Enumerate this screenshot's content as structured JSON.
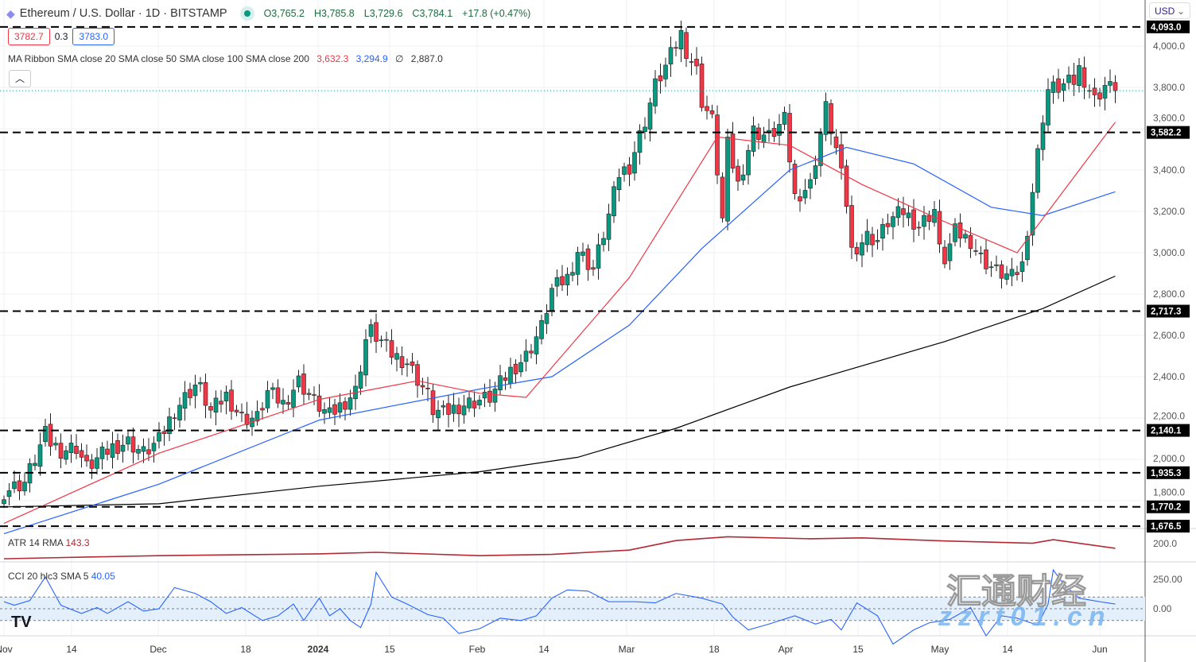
{
  "header": {
    "symbol": "Ethereum / U.S. Dollar · 1D · BITSTAMP",
    "open": "O3,765.2",
    "high": "H3,785.8",
    "low": "L3,729.6",
    "close": "C3,784.1",
    "change": "+17.8 (+0.47%)",
    "market_status": "open",
    "icon": "ethereum-icon"
  },
  "quote": {
    "bid": "3782.7",
    "spread": "0.3",
    "ask": "3783.0"
  },
  "ma_legend": {
    "label": "MA Ribbon SMA close 20 SMA close 50 SMA close 100 SMA close 200",
    "v20": "3,632.3",
    "v50": "3,294.9",
    "v100": "∅",
    "v200": "2,887.0"
  },
  "currency": "USD",
  "colors": {
    "up": "#089981",
    "down": "#f23645",
    "sma20": "#f23645",
    "sma50": "#2962ff",
    "sma200": "#000000",
    "atr": "#b22833",
    "cci": "#2962ff"
  },
  "price_axis": {
    "ticks": [
      "4,000.0",
      "3,800.0",
      "3,600.0",
      "3,400.0",
      "3,200.0",
      "3,000.0",
      "2,800.0",
      "2,600.0",
      "2,400.0",
      "2,200.0",
      "2,000.0",
      "1,800.0"
    ]
  },
  "levels": [
    "4,093.0",
    "3,582.2",
    "2,717.3",
    "2,140.1",
    "1,935.3",
    "1,770.2",
    "1,676.5"
  ],
  "time_axis": [
    "Nov",
    "14",
    "Dec",
    "18",
    "2024",
    "15",
    "Feb",
    "14",
    "Mar",
    "18",
    "Apr",
    "15",
    "May",
    "14",
    "Jun"
  ],
  "atr": {
    "label": "ATR 14 RMA",
    "value": "143.3",
    "tick": "200.0"
  },
  "cci": {
    "label": "CCI 20 hlc3 SMA 5",
    "value": "40.05",
    "ticks": [
      "250.00",
      "0.00"
    ]
  },
  "watermark": {
    "text": "zzrt01.cn",
    "cn": "汇通财经"
  },
  "chart_data": {
    "type": "candlestick",
    "ylim": [
      1650,
      4120
    ],
    "closes": [
      [
        "2023-11-01",
        1845
      ],
      [
        "2023-11-05",
        1890
      ],
      [
        "2023-11-09",
        2120
      ],
      [
        "2023-11-10",
        2080
      ],
      [
        "2023-11-12",
        2045
      ],
      [
        "2023-11-15",
        2060
      ],
      [
        "2023-11-17",
        1960
      ],
      [
        "2023-11-20",
        2020
      ],
      [
        "2023-11-22",
        2060
      ],
      [
        "2023-11-25",
        2085
      ],
      [
        "2023-11-28",
        2030
      ],
      [
        "2023-12-01",
        2090
      ],
      [
        "2023-12-04",
        2240
      ],
      [
        "2023-12-08",
        2360
      ],
      [
        "2023-12-09",
        2340
      ],
      [
        "2023-12-11",
        2230
      ],
      [
        "2023-12-14",
        2310
      ],
      [
        "2023-12-17",
        2200
      ],
      [
        "2023-12-20",
        2200
      ],
      [
        "2023-12-22",
        2325
      ],
      [
        "2023-12-25",
        2270
      ],
      [
        "2023-12-28",
        2380
      ],
      [
        "2023-12-31",
        2280
      ],
      [
        "2024-01-03",
        2210
      ],
      [
        "2024-01-08",
        2330
      ],
      [
        "2024-01-10",
        2580
      ],
      [
        "2024-01-11",
        2620
      ],
      [
        "2024-01-13",
        2570
      ],
      [
        "2024-01-15",
        2510
      ],
      [
        "2024-01-18",
        2470
      ],
      [
        "2024-01-22",
        2310
      ],
      [
        "2024-01-23",
        2240
      ],
      [
        "2024-01-25",
        2220
      ],
      [
        "2024-01-28",
        2260
      ],
      [
        "2024-01-31",
        2280
      ],
      [
        "2024-02-03",
        2300
      ],
      [
        "2024-02-07",
        2430
      ],
      [
        "2024-02-10",
        2500
      ],
      [
        "2024-02-13",
        2640
      ],
      [
        "2024-02-15",
        2820
      ],
      [
        "2024-02-18",
        2880
      ],
      [
        "2024-02-20",
        3010
      ],
      [
        "2024-02-23",
        2920
      ],
      [
        "2024-02-26",
        3180
      ],
      [
        "2024-02-28",
        3380
      ],
      [
        "2024-03-01",
        3420
      ],
      [
        "2024-03-04",
        3640
      ],
      [
        "2024-03-06",
        3810
      ],
      [
        "2024-03-08",
        3900
      ],
      [
        "2024-03-11",
        4060
      ],
      [
        "2024-03-12",
        3980
      ],
      [
        "2024-03-14",
        3880
      ],
      [
        "2024-03-15",
        3735
      ],
      [
        "2024-03-17",
        3640
      ],
      [
        "2024-03-19",
        3160
      ],
      [
        "2024-03-20",
        3520
      ],
      [
        "2024-03-22",
        3330
      ],
      [
        "2024-03-25",
        3590
      ],
      [
        "2024-03-28",
        3560
      ],
      [
        "2024-03-31",
        3640
      ],
      [
        "2024-04-02",
        3270
      ],
      [
        "2024-04-05",
        3330
      ],
      [
        "2024-04-08",
        3700
      ],
      [
        "2024-04-10",
        3500
      ],
      [
        "2024-04-12",
        3240
      ],
      [
        "2024-04-13",
        3010
      ],
      [
        "2024-04-16",
        3080
      ],
      [
        "2024-04-18",
        3060
      ],
      [
        "2024-04-20",
        3150
      ],
      [
        "2024-04-23",
        3200
      ],
      [
        "2024-04-26",
        3130
      ],
      [
        "2024-04-29",
        3210
      ],
      [
        "2024-04-30",
        3010
      ],
      [
        "2024-05-01",
        2970
      ],
      [
        "2024-05-03",
        3100
      ],
      [
        "2024-05-06",
        3060
      ],
      [
        "2024-05-08",
        2975
      ],
      [
        "2024-05-11",
        2910
      ],
      [
        "2024-05-14",
        2880
      ],
      [
        "2024-05-16",
        2940
      ],
      [
        "2024-05-20",
        3660
      ],
      [
        "2024-05-21",
        3790
      ],
      [
        "2024-05-23",
        3800
      ],
      [
        "2024-05-26",
        3830
      ],
      [
        "2024-05-27",
        3890
      ],
      [
        "2024-05-30",
        3740
      ],
      [
        "2024-06-01",
        3810
      ],
      [
        "2024-06-03",
        3784
      ]
    ],
    "sma20": [
      [
        "2023-11-01",
        1690
      ],
      [
        "2023-12-01",
        2030
      ],
      [
        "2024-01-01",
        2290
      ],
      [
        "2024-01-20",
        2380
      ],
      [
        "2024-02-01",
        2320
      ],
      [
        "2024-02-10",
        2300
      ],
      [
        "2024-03-01",
        2880
      ],
      [
        "2024-03-18",
        3560
      ],
      [
        "2024-04-01",
        3520
      ],
      [
        "2024-04-15",
        3330
      ],
      [
        "2024-05-01",
        3150
      ],
      [
        "2024-05-15",
        3000
      ],
      [
        "2024-06-03",
        3632
      ]
    ],
    "sma50": [
      [
        "2023-11-01",
        1640
      ],
      [
        "2023-12-01",
        1880
      ],
      [
        "2024-01-01",
        2190
      ],
      [
        "2024-02-01",
        2340
      ],
      [
        "2024-02-15",
        2400
      ],
      [
        "2024-03-01",
        2650
      ],
      [
        "2024-03-15",
        3020
      ],
      [
        "2024-04-01",
        3400
      ],
      [
        "2024-04-12",
        3510
      ],
      [
        "2024-04-25",
        3430
      ],
      [
        "2024-05-10",
        3220
      ],
      [
        "2024-05-20",
        3180
      ],
      [
        "2024-06-03",
        3295
      ]
    ],
    "sma200": [
      [
        "2023-11-01",
        1770
      ],
      [
        "2023-12-01",
        1785
      ],
      [
        "2024-01-01",
        1870
      ],
      [
        "2024-02-01",
        1940
      ],
      [
        "2024-02-20",
        2010
      ],
      [
        "2024-03-10",
        2150
      ],
      [
        "2024-04-01",
        2350
      ],
      [
        "2024-05-01",
        2570
      ],
      [
        "2024-05-20",
        2730
      ],
      [
        "2024-06-03",
        2887
      ]
    ],
    "atr": [
      [
        "2023-11-01",
        96
      ],
      [
        "2023-11-09",
        100
      ],
      [
        "2023-12-01",
        110
      ],
      [
        "2024-01-01",
        118
      ],
      [
        "2024-01-12",
        125
      ],
      [
        "2024-02-01",
        110
      ],
      [
        "2024-02-15",
        116
      ],
      [
        "2024-03-01",
        135
      ],
      [
        "2024-03-10",
        178
      ],
      [
        "2024-03-20",
        195
      ],
      [
        "2024-04-05",
        186
      ],
      [
        "2024-04-15",
        190
      ],
      [
        "2024-05-01",
        176
      ],
      [
        "2024-05-18",
        166
      ],
      [
        "2024-05-22",
        182
      ],
      [
        "2024-06-03",
        143
      ]
    ],
    "cci": [
      [
        "2023-11-01",
        60
      ],
      [
        "2023-11-03",
        30
      ],
      [
        "2023-11-06",
        70
      ],
      [
        "2023-11-09",
        270
      ],
      [
        "2023-11-12",
        30
      ],
      [
        "2023-11-16",
        -40
      ],
      [
        "2023-11-19",
        10
      ],
      [
        "2023-11-21",
        -40
      ],
      [
        "2023-11-25",
        60
      ],
      [
        "2023-11-28",
        -20
      ],
      [
        "2023-12-01",
        0
      ],
      [
        "2023-12-04",
        180
      ],
      [
        "2023-12-08",
        130
      ],
      [
        "2023-12-11",
        60
      ],
      [
        "2023-12-14",
        -40
      ],
      [
        "2023-12-17",
        10
      ],
      [
        "2023-12-21",
        -100
      ],
      [
        "2023-12-24",
        -60
      ],
      [
        "2023-12-27",
        40
      ],
      [
        "2023-12-29",
        -100
      ],
      [
        "2024-01-01",
        90
      ],
      [
        "2024-01-03",
        -60
      ],
      [
        "2024-01-05",
        0
      ],
      [
        "2024-01-07",
        -100
      ],
      [
        "2024-01-09",
        -160
      ],
      [
        "2024-01-11",
        40
      ],
      [
        "2024-01-12",
        310
      ],
      [
        "2024-01-15",
        100
      ],
      [
        "2024-01-18",
        40
      ],
      [
        "2024-01-22",
        -50
      ],
      [
        "2024-01-25",
        -80
      ],
      [
        "2024-01-28",
        -210
      ],
      [
        "2024-02-01",
        -170
      ],
      [
        "2024-02-05",
        -80
      ],
      [
        "2024-02-09",
        -100
      ],
      [
        "2024-02-12",
        -60
      ],
      [
        "2024-02-15",
        90
      ],
      [
        "2024-02-18",
        160
      ],
      [
        "2024-02-22",
        150
      ],
      [
        "2024-02-26",
        60
      ],
      [
        "2024-03-02",
        60
      ],
      [
        "2024-03-06",
        50
      ],
      [
        "2024-03-10",
        130
      ],
      [
        "2024-03-15",
        90
      ],
      [
        "2024-03-19",
        40
      ],
      [
        "2024-03-21",
        -70
      ],
      [
        "2024-03-24",
        -180
      ],
      [
        "2024-03-28",
        -130
      ],
      [
        "2024-04-02",
        -60
      ],
      [
        "2024-04-06",
        -130
      ],
      [
        "2024-04-09",
        -90
      ],
      [
        "2024-04-11",
        -180
      ],
      [
        "2024-04-14",
        50
      ],
      [
        "2024-04-18",
        -60
      ],
      [
        "2024-04-21",
        -300
      ],
      [
        "2024-04-25",
        -180
      ],
      [
        "2024-04-28",
        -120
      ],
      [
        "2024-05-02",
        -90
      ],
      [
        "2024-05-06",
        10
      ],
      [
        "2024-05-09",
        -230
      ],
      [
        "2024-05-12",
        -60
      ],
      [
        "2024-05-15",
        -80
      ],
      [
        "2024-05-19",
        -140
      ],
      [
        "2024-05-21",
        40
      ],
      [
        "2024-05-22",
        330
      ],
      [
        "2024-05-24",
        210
      ],
      [
        "2024-05-27",
        90
      ],
      [
        "2024-05-31",
        60
      ],
      [
        "2024-06-03",
        40
      ]
    ]
  }
}
